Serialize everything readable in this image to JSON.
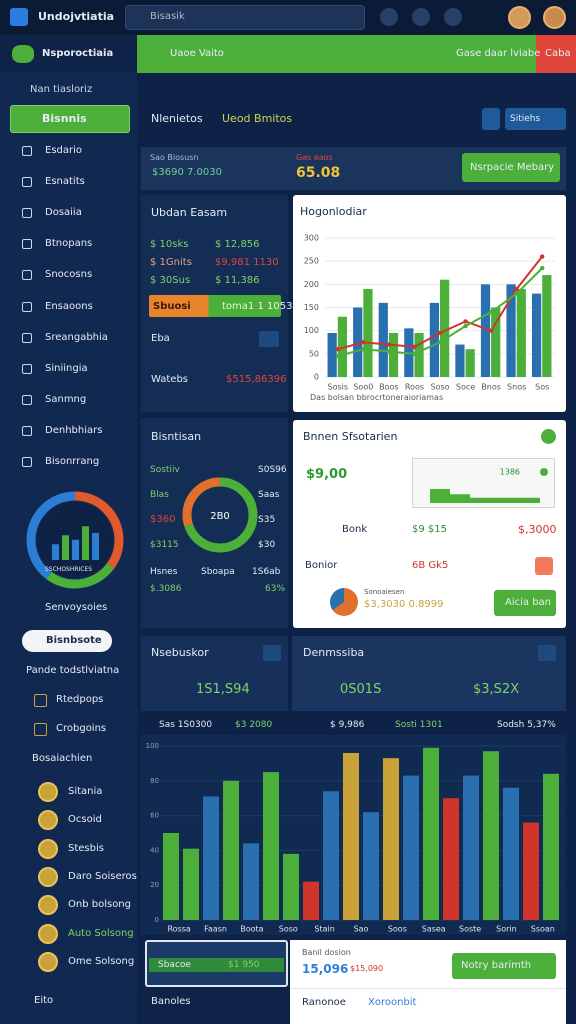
{
  "top_bar": {
    "app_name": "Undojvtiatia",
    "search": "Bisasik"
  },
  "sidebar": {
    "brand": "Nsporoctiaia",
    "section": "Nan tiasloriz",
    "active": "Bisnnis",
    "nav": [
      "Esdario",
      "Esnatits",
      "Dosaiia",
      "Btnopans",
      "Snocosns",
      "Ensaoons",
      "Sreangabhia",
      "Siniingia",
      "Sanmng",
      "Denhbhiars",
      "Bisonrrang"
    ],
    "gauge": {
      "label": "SSCHOSHRICES",
      "segments": [
        35,
        25,
        40
      ],
      "segment_colors": [
        "#e05a2b",
        "#4caf3a",
        "#2a7fd4"
      ],
      "bars": [
        35,
        55,
        45,
        75,
        60
      ],
      "bar_max": 100
    },
    "services": "Senvoysoies",
    "pill": "Bisnbsote",
    "group_title": "Pande todstlviatna",
    "group_items": [
      "Rtedpops",
      "Crobgoins"
    ],
    "coins_title": "Bosaiachien",
    "coins": [
      "Sitania",
      "Ocsoid",
      "Stesbis",
      "Daro Soiseros",
      "Onb bolsong",
      "Auto Solsong",
      "Ome Solsong"
    ],
    "footer": "Eito"
  },
  "banner": {
    "title": "Uaoe Vaito",
    "right": "Gase daar lviabe",
    "badge": "Caba"
  },
  "toolbar": {
    "title": "Nlenietos",
    "tab": "Ueod Bmitos",
    "dropdown": "Sitiehs"
  },
  "summary": {
    "label": "Sao Biosusn",
    "value": "$3690 7.0030",
    "label2": "Gas eaos",
    "value2": "65.08",
    "button": "Nsrpacie Mebary"
  },
  "left_panel": {
    "title": "Ubdan Easam",
    "rows": [
      [
        "$ 10sks",
        "$ 12,856"
      ],
      [
        "$ 1Gnits",
        "$9,981 1130"
      ],
      [
        "$ 30Sus",
        "$ 11,386"
      ]
    ],
    "bar": [
      "Sbuosi",
      "toma1 1 1053"
    ],
    "row": "Eba",
    "footer": [
      "Watebs",
      "$515,86396"
    ]
  },
  "chart_panel": {
    "title": "Hogonlodiar",
    "caption": "Das bolsan bbrocrtoneraioriamas",
    "chart": {
      "type": "bar",
      "categories": [
        "Sosis",
        "Soo0",
        "Boos",
        "Roos",
        "Soso",
        "Soce",
        "Bnos",
        "Snos",
        "Sos"
      ],
      "series": [
        {
          "style": "bar",
          "color": "#2a6fb0",
          "values": [
            95,
            150,
            160,
            105,
            160,
            70,
            200,
            200,
            180
          ]
        },
        {
          "style": "bar",
          "color": "#4caf3a",
          "values": [
            130,
            190,
            95,
            95,
            210,
            60,
            150,
            190,
            220
          ]
        },
        {
          "style": "line",
          "color": "#d0352b",
          "values": [
            60,
            75,
            70,
            65,
            95,
            120,
            100,
            190,
            260
          ]
        },
        {
          "style": "line",
          "color": "#4caf3a",
          "values": [
            45,
            60,
            55,
            50,
            75,
            110,
            140,
            180,
            235
          ]
        }
      ],
      "ylim": [
        0,
        300
      ],
      "yticks": [
        0,
        50,
        100,
        150,
        200,
        250,
        300
      ],
      "grid": true
    }
  },
  "mid_panel": {
    "title": "Bisntisan",
    "center": "2B0",
    "segments": [
      70,
      30
    ],
    "segment_colors": [
      "#4caf3a",
      "#e0702b"
    ],
    "left": [
      "Sostiiv",
      "Blas",
      "$360",
      "$3115"
    ],
    "right": [
      "S0S96",
      "Saas",
      "S35",
      "$30"
    ],
    "bottom": [
      "Hsnes",
      "Sboapa",
      "1S6ab"
    ],
    "bottom2": [
      "$.3086",
      "63%"
    ]
  },
  "detail_panel": {
    "title": "Bnnen Sfsotarien",
    "value": "$9,00",
    "mini_label": "1386",
    "mini_steps": [
      40,
      25,
      15
    ],
    "row1": [
      "Bonk",
      "$9 $15",
      "$,3000"
    ],
    "row2": [
      "Bonior",
      "6B Gk5"
    ],
    "row3": [
      "Sonoaiesen",
      "$3,3030 0.8999"
    ],
    "button": "Aicia ban"
  },
  "stats": {
    "left_title": "Nsebuskor",
    "left_value": "1S1,S94",
    "mid_title": "Denmssiba",
    "mid_value": "0S01S",
    "right_value": "$3,S2X",
    "row": [
      "Sas 1S0300",
      "$3 2080",
      "$ 9,986",
      "Sosti 1301",
      "Sodsh 5,37%"
    ]
  },
  "big_chart": {
    "type": "bar",
    "x_labels": [
      "Rossa",
      "Faasn",
      "Boota",
      "Soso",
      "Stain",
      "Sao",
      "Soos",
      "Sasea",
      "Soste",
      "Sorin",
      "Ssoan"
    ],
    "values": [
      50,
      41,
      71,
      80,
      44,
      85,
      38,
      22,
      74,
      96,
      62,
      93,
      83,
      99,
      70,
      83,
      97,
      76,
      56,
      84
    ],
    "colors": [
      "#4caf3a",
      "#4caf3a",
      "#2a6fb0",
      "#4caf3a",
      "#2a6fb0",
      "#4caf3a",
      "#4caf3a",
      "#d0352b",
      "#2a6fb0",
      "#c9a23a",
      "#2a6fb0",
      "#c9a23a",
      "#2a6fb0",
      "#4caf3a",
      "#d0352b",
      "#2a6fb0",
      "#4caf3a",
      "#2a6fb0",
      "#d0352b",
      "#4caf3a"
    ],
    "ylim": [
      0,
      100
    ],
    "yticks": [
      0,
      20,
      40,
      60,
      80,
      100
    ]
  },
  "footer": {
    "card_label": "Sbacoe",
    "card_value": "$1 950",
    "title": "Banil dosion",
    "value": "15,096",
    "value2": "$15,090",
    "button": "Notry barimth",
    "links": [
      "Ranonoe",
      "Xoroonbit"
    ],
    "left": "Banoles"
  }
}
